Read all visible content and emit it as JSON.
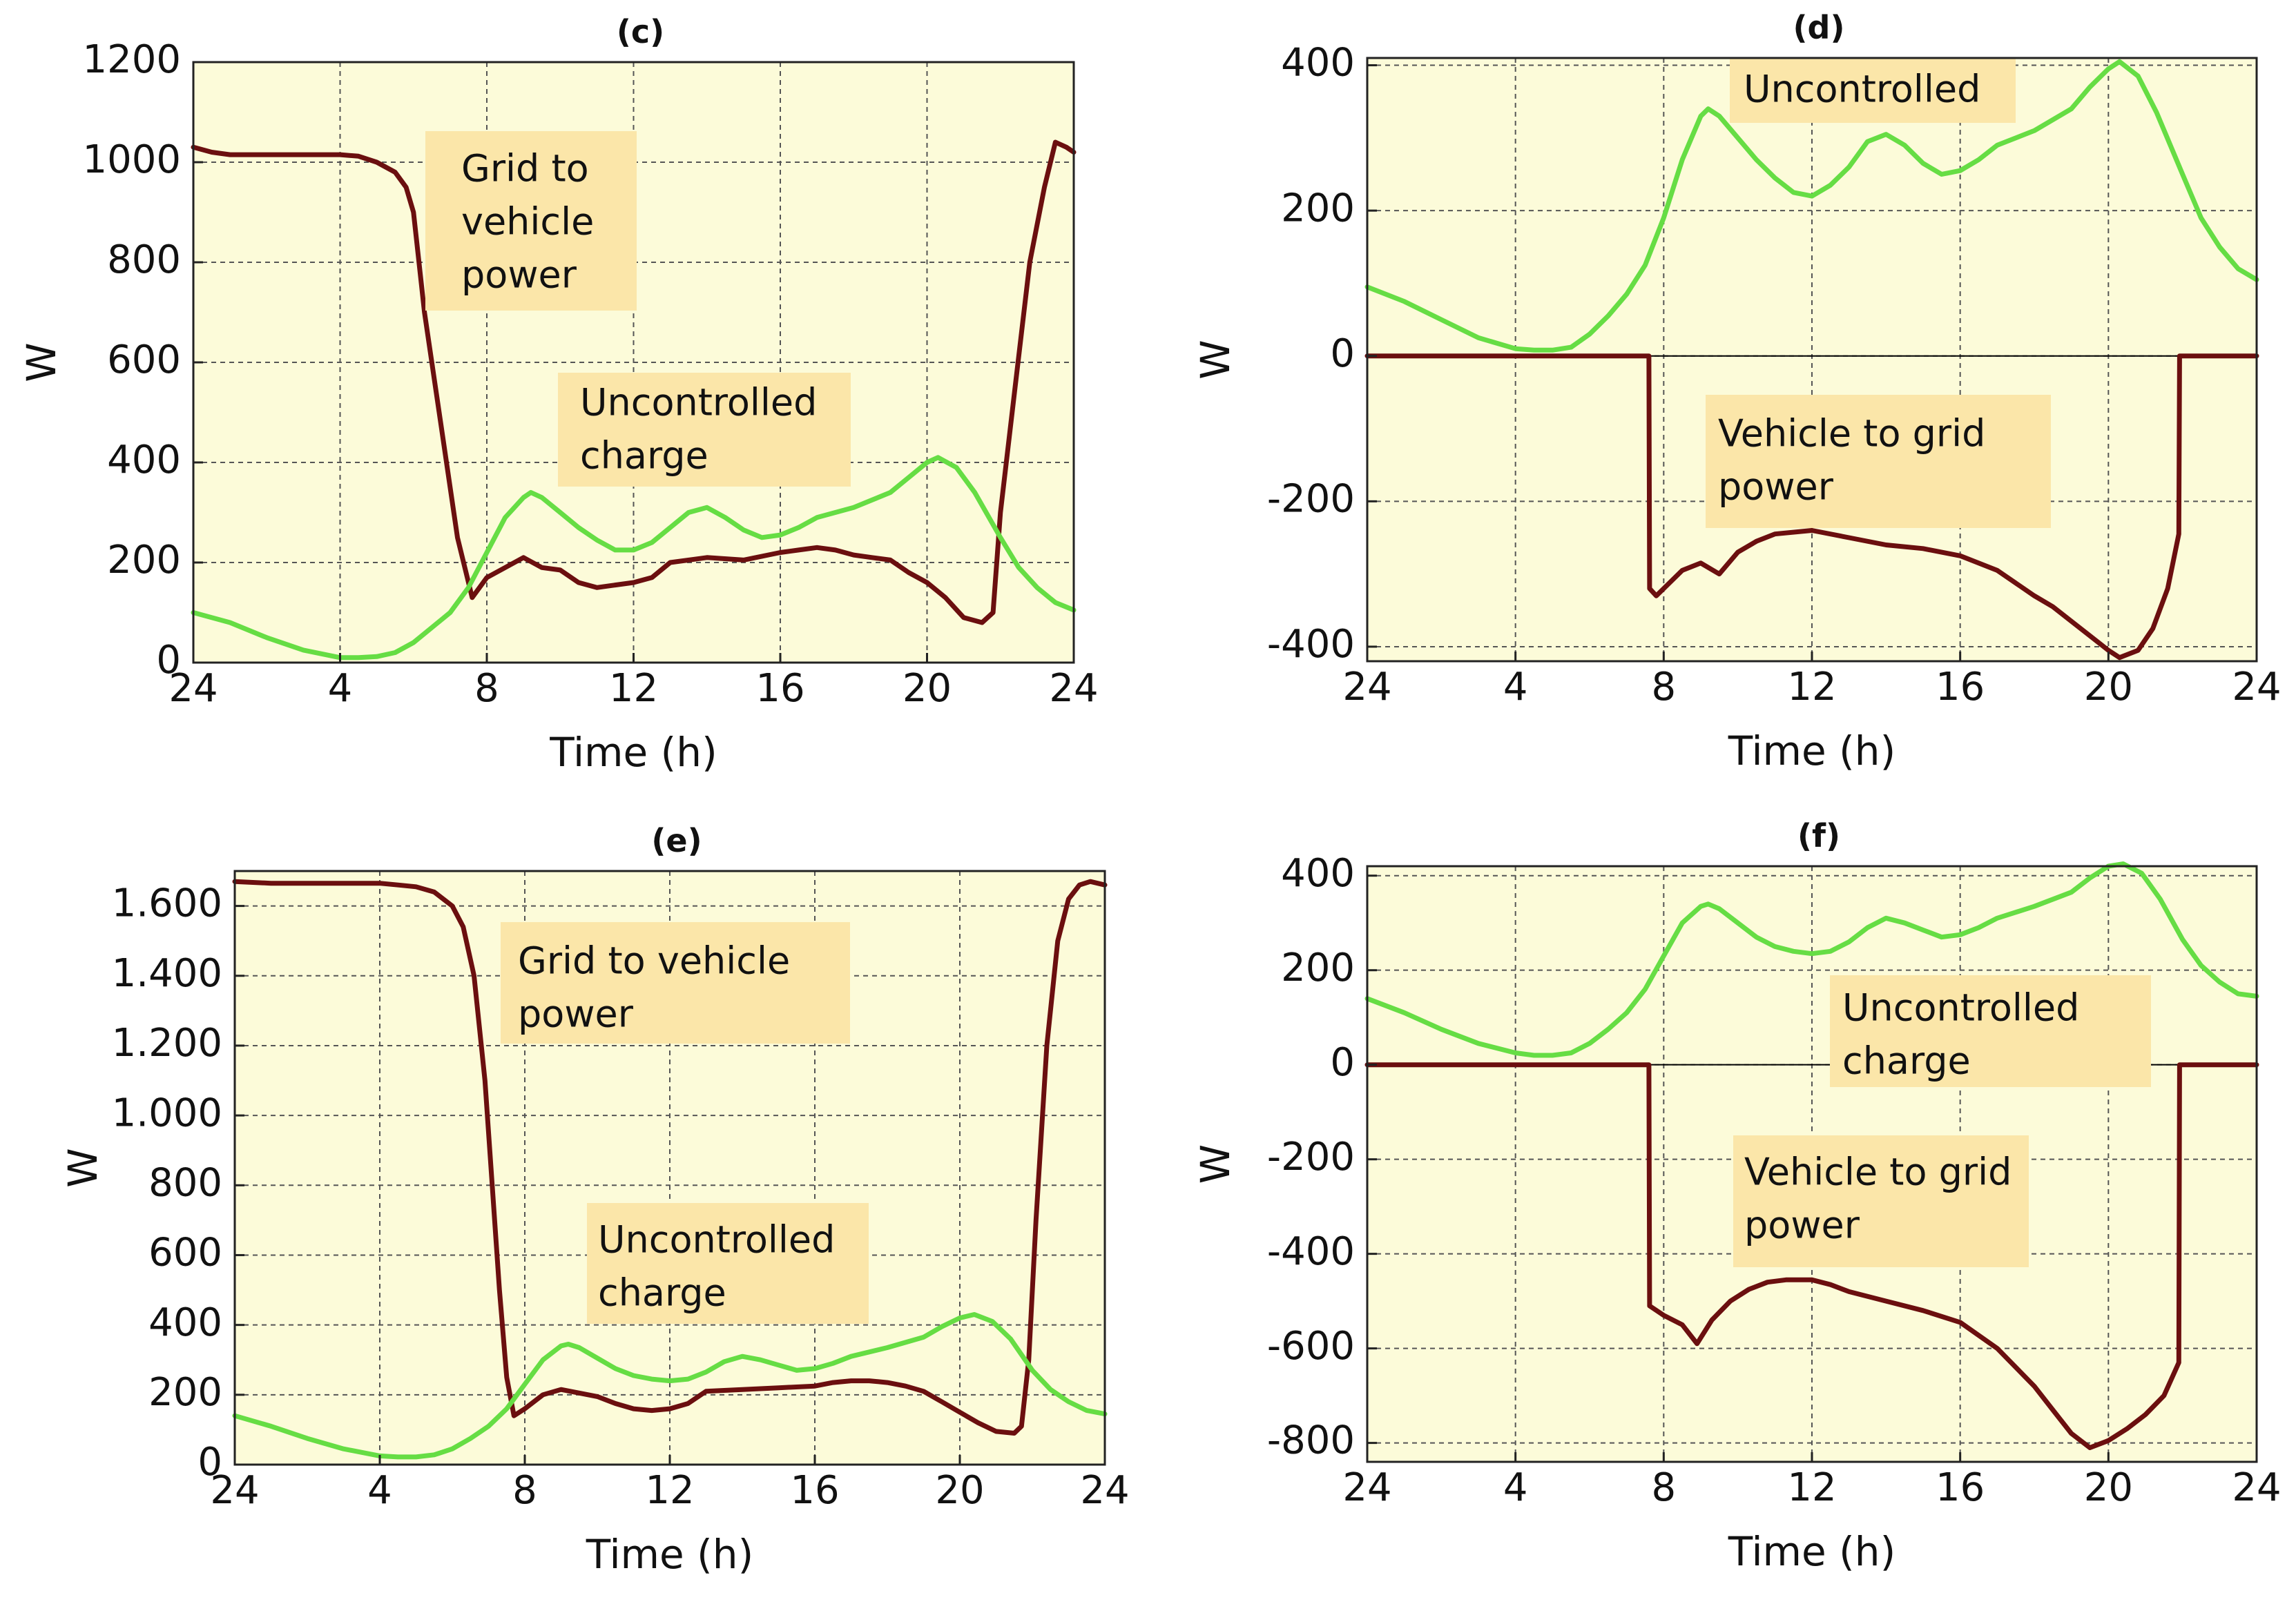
{
  "figure": {
    "colors": {
      "plot_bg": "#fcfbd9",
      "uncontrolled": "#66dd44",
      "v2g": "#6b0f0f",
      "label_box": "#fbe6a9",
      "grid": "#555555",
      "axis": "#222222"
    }
  },
  "chart_data": [
    {
      "id": "c",
      "type": "line",
      "title": "(c)",
      "xlabel": "Time (h)",
      "ylabel": "W",
      "xlim": [
        0,
        24
      ],
      "ylim": [
        0,
        1200
      ],
      "grid": true,
      "x_ticks": [
        0,
        4,
        8,
        12,
        16,
        20,
        24
      ],
      "x_tick_labels": [
        "24",
        "4",
        "8",
        "12",
        "16",
        "20",
        "24"
      ],
      "y_ticks": [
        0,
        200,
        400,
        600,
        800,
        1000,
        1200
      ],
      "y_tick_labels": [
        "0",
        "200",
        "400",
        "600",
        "800",
        "1000",
        "1200"
      ],
      "series": [
        {
          "name": "Grid to vehicle power",
          "color_key": "v2g",
          "x": [
            0,
            0.5,
            1,
            2,
            3,
            4,
            4.5,
            5,
            5.5,
            5.8,
            6.0,
            6.3,
            6.8,
            7.2,
            7.6,
            8.0,
            8.5,
            9.0,
            9.5,
            10,
            10.5,
            11,
            11.5,
            12,
            12.5,
            13,
            14,
            15,
            16,
            16.5,
            17,
            17.5,
            18,
            18.5,
            19,
            19.5,
            20,
            20.5,
            21,
            21.5,
            21.8,
            22.0,
            22.4,
            22.8,
            23.2,
            23.5,
            23.8,
            24
          ],
          "y": [
            1030,
            1020,
            1015,
            1015,
            1015,
            1015,
            1012,
            1000,
            980,
            950,
            900,
            700,
            450,
            250,
            130,
            170,
            190,
            210,
            190,
            185,
            160,
            150,
            155,
            160,
            170,
            200,
            210,
            205,
            220,
            225,
            230,
            225,
            215,
            210,
            205,
            180,
            160,
            130,
            90,
            80,
            100,
            300,
            550,
            800,
            950,
            1040,
            1030,
            1020
          ]
        },
        {
          "name": "Uncontrolled charge",
          "color_key": "uncontrolled",
          "x": [
            0,
            1,
            2,
            3,
            4,
            4.5,
            5,
            5.5,
            6,
            6.5,
            7,
            7.5,
            8,
            8.5,
            9,
            9.2,
            9.5,
            10,
            10.5,
            11,
            11.5,
            12,
            12.5,
            13,
            13.5,
            14,
            14.5,
            15,
            15.5,
            16,
            16.5,
            17,
            18,
            19,
            19.5,
            20,
            20.3,
            20.8,
            21.3,
            22,
            22.5,
            23,
            23.5,
            24
          ],
          "y": [
            100,
            80,
            50,
            25,
            10,
            10,
            12,
            20,
            40,
            70,
            100,
            150,
            220,
            290,
            330,
            340,
            330,
            300,
            270,
            245,
            225,
            225,
            240,
            270,
            300,
            310,
            290,
            265,
            250,
            255,
            270,
            290,
            310,
            340,
            370,
            400,
            410,
            390,
            340,
            250,
            190,
            150,
            120,
            105
          ]
        }
      ],
      "annotations": [
        {
          "lines": [
            "Grid to",
            "vehicle",
            "power"
          ]
        },
        {
          "lines": [
            "Uncontrolled",
            "charge"
          ]
        }
      ]
    },
    {
      "id": "d",
      "type": "line",
      "title": "(d)",
      "xlabel": "Time (h)",
      "ylabel": "W",
      "xlim": [
        0,
        24
      ],
      "ylim": [
        -420,
        410
      ],
      "grid": true,
      "x_ticks": [
        0,
        4,
        8,
        12,
        16,
        20,
        24
      ],
      "x_tick_labels": [
        "24",
        "4",
        "8",
        "12",
        "16",
        "20",
        "24"
      ],
      "y_ticks": [
        -400,
        -200,
        0,
        200,
        400
      ],
      "y_tick_labels": [
        "-400",
        "-200",
        "0",
        "200",
        "400"
      ],
      "series": [
        {
          "name": "Uncontrolled",
          "color_key": "uncontrolled",
          "x": [
            0,
            1,
            2,
            3,
            4,
            4.5,
            5,
            5.5,
            6,
            6.5,
            7,
            7.5,
            8,
            8.5,
            9,
            9.2,
            9.5,
            10,
            10.5,
            11,
            11.5,
            12,
            12.5,
            13,
            13.5,
            14,
            14.5,
            15,
            15.5,
            16,
            16.5,
            17,
            18,
            19,
            19.5,
            20,
            20.3,
            20.8,
            21.3,
            22,
            22.5,
            23,
            23.5,
            24
          ],
          "y": [
            95,
            75,
            50,
            25,
            10,
            8,
            8,
            12,
            30,
            55,
            85,
            125,
            190,
            270,
            330,
            340,
            330,
            300,
            270,
            245,
            225,
            220,
            235,
            260,
            295,
            305,
            290,
            265,
            250,
            255,
            270,
            290,
            310,
            340,
            370,
            395,
            405,
            385,
            335,
            250,
            190,
            150,
            120,
            105
          ]
        },
        {
          "name": "Vehicle to grid power",
          "color_key": "v2g",
          "x": [
            0,
            7.6,
            7.62,
            7.8,
            8.0,
            8.5,
            9.0,
            9.5,
            10,
            10.5,
            11,
            12,
            13,
            14,
            15,
            16,
            17,
            18,
            18.5,
            19,
            19.5,
            20,
            20.3,
            20.8,
            21.2,
            21.6,
            21.9,
            21.92,
            22.5,
            24
          ],
          "y": [
            0,
            0,
            -320,
            -330,
            -320,
            -295,
            -285,
            -300,
            -270,
            -255,
            -245,
            -240,
            -250,
            -260,
            -265,
            -275,
            -295,
            -330,
            -345,
            -365,
            -385,
            -405,
            -415,
            -405,
            -375,
            -320,
            -245,
            0,
            0,
            0
          ]
        }
      ],
      "annotations": [
        {
          "lines": [
            "Uncontrolled"
          ]
        },
        {
          "lines": [
            "Vehicle to grid",
            "power"
          ]
        }
      ]
    },
    {
      "id": "e",
      "type": "line",
      "title": "(e)",
      "xlabel": "Time (h)",
      "ylabel": "W",
      "xlim": [
        0,
        24
      ],
      "ylim": [
        0,
        1700
      ],
      "grid": true,
      "x_ticks": [
        0,
        4,
        8,
        12,
        16,
        20,
        24
      ],
      "x_tick_labels": [
        "24",
        "4",
        "8",
        "12",
        "16",
        "20",
        "24"
      ],
      "y_ticks": [
        0,
        200,
        400,
        600,
        800,
        1000,
        1200,
        1400,
        1600
      ],
      "y_tick_labels": [
        "0",
        "200",
        "400",
        "600",
        "800",
        "1.000",
        "1.200",
        "1.400",
        "1.600"
      ],
      "series": [
        {
          "name": "Grid to vehicle power",
          "color_key": "v2g",
          "x": [
            0,
            1,
            2,
            3,
            4,
            4.5,
            5,
            5.5,
            6,
            6.3,
            6.6,
            6.9,
            7.1,
            7.3,
            7.5,
            7.7,
            8.0,
            8.5,
            9.0,
            9.5,
            10,
            10.5,
            11,
            11.5,
            12,
            12.5,
            13,
            14,
            15,
            16,
            16.5,
            17,
            17.5,
            18,
            18.5,
            19,
            19.5,
            20,
            20.5,
            21,
            21.5,
            21.7,
            21.9,
            22.1,
            22.4,
            22.7,
            23.0,
            23.3,
            23.6,
            24
          ],
          "y": [
            1670,
            1665,
            1665,
            1665,
            1665,
            1660,
            1655,
            1640,
            1600,
            1540,
            1400,
            1100,
            800,
            500,
            250,
            140,
            160,
            200,
            215,
            205,
            195,
            175,
            160,
            155,
            160,
            175,
            210,
            215,
            220,
            225,
            235,
            240,
            240,
            235,
            225,
            210,
            180,
            150,
            120,
            95,
            90,
            110,
            300,
            700,
            1200,
            1500,
            1620,
            1660,
            1670,
            1660
          ]
        },
        {
          "name": "Uncontrolled charge",
          "color_key": "uncontrolled",
          "x": [
            0,
            1,
            2,
            3,
            4,
            4.5,
            5,
            5.5,
            6,
            6.5,
            7,
            7.5,
            8,
            8.5,
            9,
            9.2,
            9.5,
            10,
            10.5,
            11,
            11.5,
            12,
            12.5,
            13,
            13.5,
            14,
            14.5,
            15,
            15.5,
            16,
            16.5,
            17,
            18,
            19,
            19.5,
            20,
            20.4,
            20.9,
            21.4,
            22,
            22.5,
            23,
            23.5,
            24
          ],
          "y": [
            140,
            110,
            75,
            45,
            25,
            22,
            22,
            28,
            45,
            75,
            110,
            160,
            230,
            300,
            340,
            345,
            335,
            305,
            275,
            255,
            245,
            240,
            245,
            265,
            295,
            310,
            300,
            285,
            270,
            275,
            290,
            310,
            335,
            365,
            395,
            420,
            430,
            410,
            360,
            270,
            215,
            180,
            155,
            145
          ]
        }
      ],
      "annotations": [
        {
          "lines": [
            "Grid to vehicle",
            "power"
          ]
        },
        {
          "lines": [
            "Uncontrolled",
            "charge"
          ]
        }
      ]
    },
    {
      "id": "f",
      "type": "line",
      "title": "(f)",
      "xlabel": "Time (h)",
      "ylabel": "W",
      "xlim": [
        0,
        24
      ],
      "ylim": [
        -840,
        420
      ],
      "grid": true,
      "x_ticks": [
        0,
        4,
        8,
        12,
        16,
        20,
        24
      ],
      "x_tick_labels": [
        "24",
        "4",
        "8",
        "12",
        "16",
        "20",
        "24"
      ],
      "y_ticks": [
        -800,
        -600,
        -400,
        -200,
        0,
        200,
        400
      ],
      "y_tick_labels": [
        "-800",
        "-600",
        "-400",
        "-200",
        "0",
        "200",
        "400"
      ],
      "series": [
        {
          "name": "Uncontrolled charge",
          "color_key": "uncontrolled",
          "x": [
            0,
            1,
            2,
            3,
            4,
            4.5,
            5,
            5.5,
            6,
            6.5,
            7,
            7.5,
            8,
            8.5,
            9,
            9.2,
            9.5,
            10,
            10.5,
            11,
            11.5,
            12,
            12.5,
            13,
            13.5,
            14,
            14.5,
            15,
            15.5,
            16,
            16.5,
            17,
            18,
            19,
            19.5,
            20,
            20.4,
            20.9,
            21.4,
            22,
            22.5,
            23,
            23.5,
            24
          ],
          "y": [
            140,
            110,
            75,
            45,
            25,
            20,
            20,
            25,
            45,
            75,
            110,
            160,
            230,
            300,
            335,
            340,
            330,
            300,
            270,
            250,
            240,
            235,
            240,
            260,
            290,
            310,
            300,
            285,
            270,
            275,
            290,
            310,
            335,
            365,
            395,
            420,
            425,
            405,
            350,
            265,
            210,
            175,
            150,
            145
          ]
        },
        {
          "name": "Vehicle to grid power",
          "color_key": "v2g",
          "x": [
            0,
            7.6,
            7.62,
            8.0,
            8.5,
            8.9,
            9.3,
            9.8,
            10.3,
            10.8,
            11.3,
            12,
            12.5,
            13,
            14,
            15,
            16,
            17,
            18,
            18.5,
            19,
            19.5,
            20,
            20.5,
            21,
            21.5,
            21.9,
            21.92,
            22.5,
            24
          ],
          "y": [
            0,
            0,
            -510,
            -530,
            -550,
            -590,
            -540,
            -500,
            -475,
            -460,
            -455,
            -455,
            -465,
            -480,
            -500,
            -520,
            -545,
            -600,
            -680,
            -730,
            -780,
            -810,
            -795,
            -770,
            -740,
            -700,
            -630,
            0,
            0,
            0
          ]
        }
      ],
      "annotations": [
        {
          "lines": [
            "Uncontrolled",
            "charge"
          ]
        },
        {
          "lines": [
            "Vehicle to grid",
            "power"
          ]
        }
      ]
    }
  ]
}
